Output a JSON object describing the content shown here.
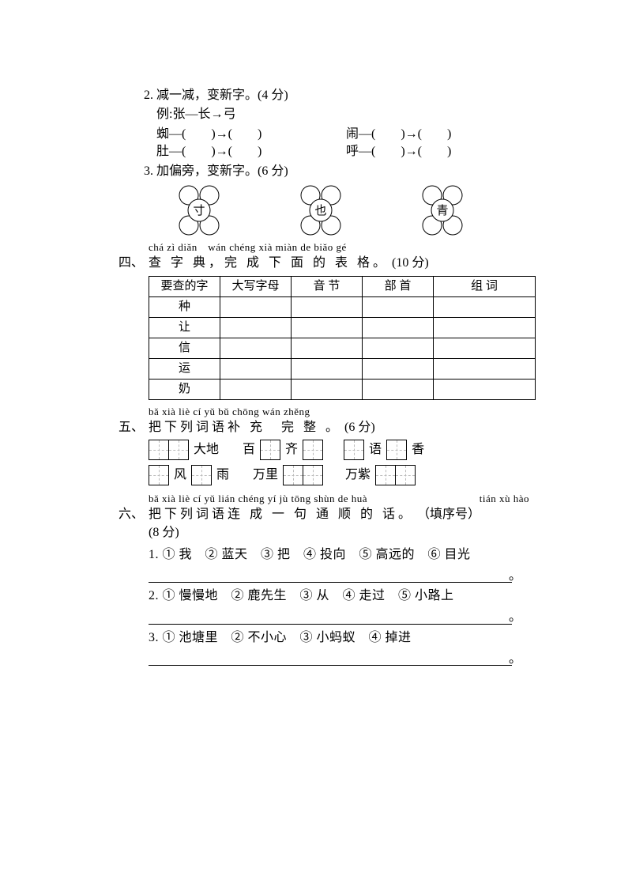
{
  "q2": {
    "title": "2. 减一减，变新字。(4 分)",
    "example": "例:张—长→弓",
    "items": [
      {
        "left": "蜘—(　　)→(　　)",
        "right": "闹—(　　)→(　　)"
      },
      {
        "left": "肚—(　　)→(　　)",
        "right": "呼—(　　)→(　　)"
      }
    ]
  },
  "q3": {
    "title": "3. 加偏旁，变新字。(6 分)",
    "flowers": [
      "寸",
      "也",
      "青"
    ]
  },
  "s4": {
    "pinyin": "chá zì diǎn　wán chéng xià miàn de biǎo gé",
    "title": "查 字 典，完 成 下 面 的 表 格。",
    "points": "(10 分)",
    "headers": [
      "要查的字",
      "大写字母",
      "音 节",
      "部 首",
      "组 词"
    ],
    "rows": [
      "种",
      "让",
      "信",
      "运",
      "奶"
    ]
  },
  "s5": {
    "pinyin": "bǎ xià liè cí yǔ bǔ chōng wán zhěng",
    "title": "把下列词语补 充　完 整 。",
    "points": "(6 分)",
    "row1": [
      {
        "t": "pair"
      },
      {
        "t": "w",
        "v": "大地"
      },
      {
        "t": "sp"
      },
      {
        "t": "w",
        "v": "百"
      },
      {
        "t": "box"
      },
      {
        "t": "w",
        "v": "齐"
      },
      {
        "t": "box"
      },
      {
        "t": "sp"
      },
      {
        "t": "box"
      },
      {
        "t": "w",
        "v": "语"
      },
      {
        "t": "box"
      },
      {
        "t": "w",
        "v": "香"
      }
    ],
    "row2": [
      {
        "t": "box"
      },
      {
        "t": "w",
        "v": "风"
      },
      {
        "t": "box"
      },
      {
        "t": "w",
        "v": "雨"
      },
      {
        "t": "sp"
      },
      {
        "t": "w",
        "v": "万里"
      },
      {
        "t": "pair"
      },
      {
        "t": "sp"
      },
      {
        "t": "w",
        "v": "万紫"
      },
      {
        "t": "pair"
      }
    ]
  },
  "s6": {
    "pinyin_a": "bǎ xià liè cí yǔ lián chéng yí jù tōng shùn de huà",
    "pinyin_b": "tián xù hào",
    "title": "把下列词语连 成 一 句 通 顺 的 话。",
    "hint": "（填序号）",
    "points": "(8 分)",
    "items": [
      "1. ① 我　② 蓝天　③ 把　④ 投向　⑤ 高远的　⑥ 目光",
      "2. ① 慢慢地　② 鹿先生　③ 从　④ 走过　⑤ 小路上",
      "3. ① 池塘里　② 不小心　③ 小蚂蚁　④ 掉进"
    ]
  },
  "section_labels": {
    "s4": "四、",
    "s5": "五、",
    "s6": "六、"
  },
  "colors": {
    "text": "#000000",
    "bg": "#ffffff",
    "dashed": "#bbbbbb"
  }
}
